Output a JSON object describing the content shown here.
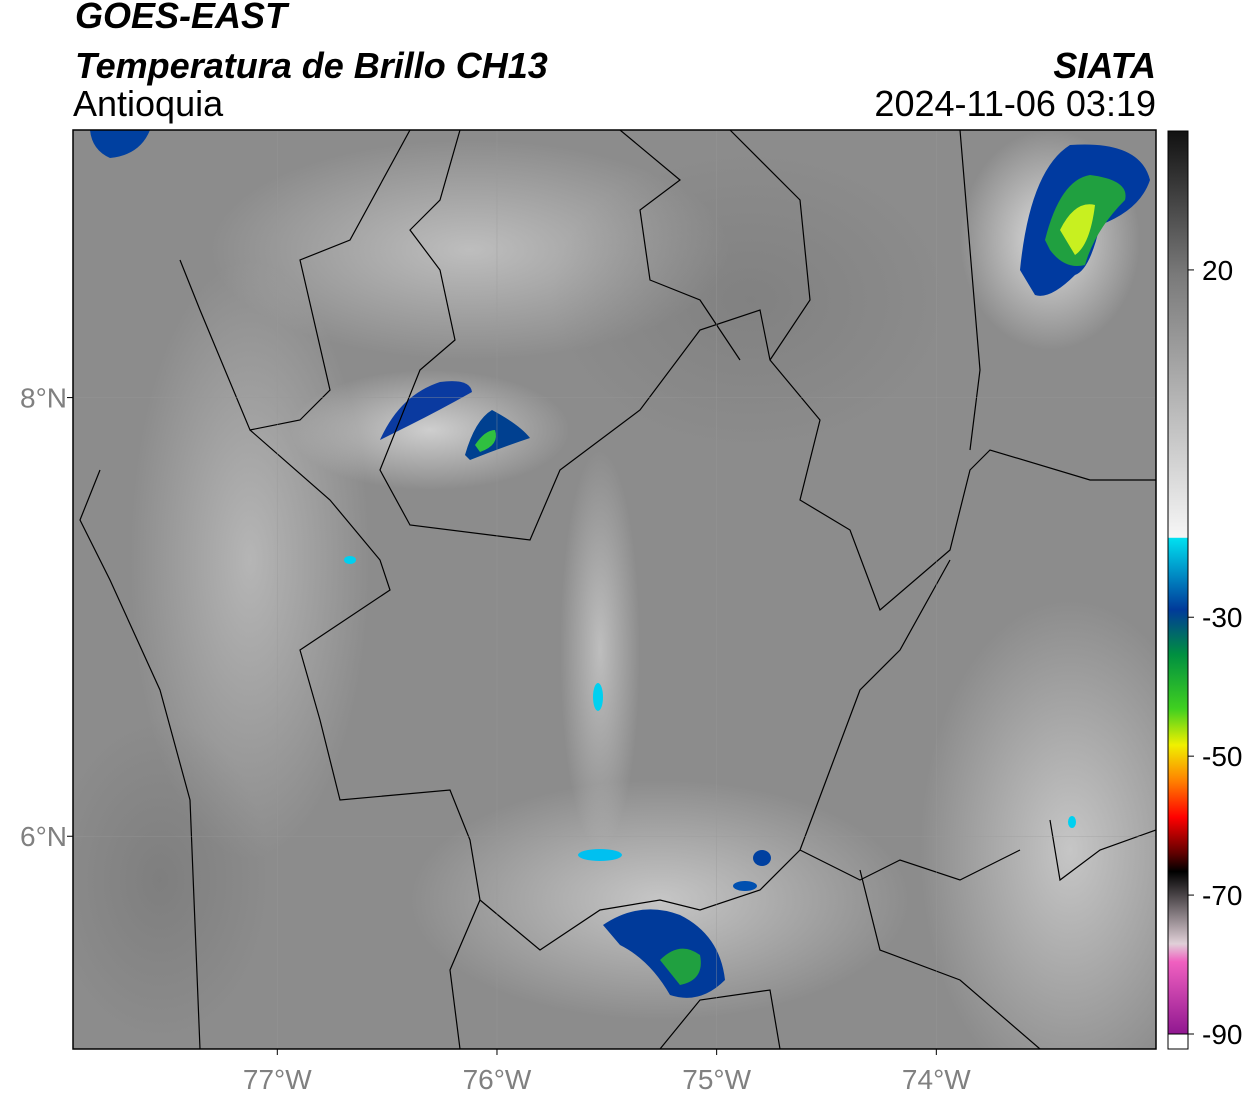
{
  "header": {
    "satellite": "GOES-EAST",
    "product": "Temperatura de Brillo CH13",
    "region": "Antioquia",
    "agency": "SIATA",
    "datetime": "2024-11-06 03:19"
  },
  "map": {
    "xlim": [
      -77.93,
      -73.0
    ],
    "ylim": [
      5.03,
      9.22
    ],
    "xticks": [
      {
        "value": -77,
        "label": "77°W"
      },
      {
        "value": -76,
        "label": "76°W"
      },
      {
        "value": -75,
        "label": "75°W"
      },
      {
        "value": -74,
        "label": "74°W"
      }
    ],
    "yticks": [
      {
        "value": 8,
        "label": "8°N"
      },
      {
        "value": 6,
        "label": "6°N"
      }
    ]
  },
  "colorbar": {
    "clim": [
      -90,
      40
    ],
    "ticks": [
      20,
      -30,
      -50,
      -70,
      -90
    ]
  }
}
